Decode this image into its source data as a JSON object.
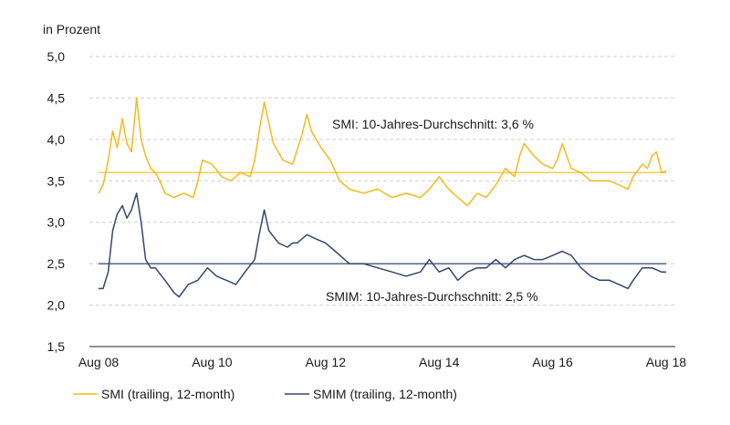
{
  "chart_data": {
    "type": "line",
    "ylabel": "in Prozent",
    "ylim": [
      1.5,
      5.0
    ],
    "yticks": [
      1.5,
      2.0,
      2.5,
      3.0,
      3.5,
      4.0,
      4.5,
      5.0
    ],
    "ytick_labels": [
      "1,5",
      "2,0",
      "2,5",
      "3,0",
      "3,5",
      "4,0",
      "4,5",
      "5,0"
    ],
    "xlim": [
      2008.58,
      2018.58
    ],
    "xticks": [
      2008.58,
      2010.58,
      2012.58,
      2014.58,
      2016.58,
      2018.58
    ],
    "xtick_labels": [
      "Aug 08",
      "Aug 10",
      "Aug 12",
      "Aug 14",
      "Aug 16",
      "Aug 18"
    ],
    "grid": "horizontal-dashed",
    "colors": {
      "smi": "#f2bb1c",
      "smim": "#33466e",
      "grid": "#cfcfcf",
      "axis": "#222222"
    },
    "annotations": [
      {
        "text": "SMI: 10-Jahres-Durchschnitt: 3,6 %",
        "value": 3.6
      },
      {
        "text": "SMIM: 10-Jahres-Durchschnitt: 2,5 %",
        "value": 2.5
      }
    ],
    "legend_position": "bottom-left",
    "series": [
      {
        "name": "SMI (trailing, 12-month)",
        "average": 3.6,
        "points": [
          [
            2008.58,
            3.35
          ],
          [
            2008.66,
            3.45
          ],
          [
            2008.75,
            3.75
          ],
          [
            2008.83,
            4.1
          ],
          [
            2008.91,
            3.9
          ],
          [
            2009.0,
            4.25
          ],
          [
            2009.08,
            3.95
          ],
          [
            2009.16,
            3.85
          ],
          [
            2009.25,
            4.5
          ],
          [
            2009.33,
            4.0
          ],
          [
            2009.41,
            3.8
          ],
          [
            2009.5,
            3.65
          ],
          [
            2009.58,
            3.6
          ],
          [
            2009.66,
            3.5
          ],
          [
            2009.75,
            3.35
          ],
          [
            2009.91,
            3.3
          ],
          [
            2010.08,
            3.35
          ],
          [
            2010.25,
            3.3
          ],
          [
            2010.33,
            3.5
          ],
          [
            2010.41,
            3.75
          ],
          [
            2010.58,
            3.7
          ],
          [
            2010.75,
            3.55
          ],
          [
            2010.91,
            3.5
          ],
          [
            2011.08,
            3.6
          ],
          [
            2011.25,
            3.55
          ],
          [
            2011.33,
            3.75
          ],
          [
            2011.41,
            4.1
          ],
          [
            2011.5,
            4.45
          ],
          [
            2011.58,
            4.2
          ],
          [
            2011.66,
            3.95
          ],
          [
            2011.83,
            3.75
          ],
          [
            2012.0,
            3.7
          ],
          [
            2012.16,
            4.05
          ],
          [
            2012.25,
            4.3
          ],
          [
            2012.33,
            4.1
          ],
          [
            2012.5,
            3.9
          ],
          [
            2012.66,
            3.75
          ],
          [
            2012.83,
            3.5
          ],
          [
            2013.0,
            3.4
          ],
          [
            2013.25,
            3.35
          ],
          [
            2013.5,
            3.4
          ],
          [
            2013.75,
            3.3
          ],
          [
            2014.0,
            3.35
          ],
          [
            2014.25,
            3.3
          ],
          [
            2014.41,
            3.4
          ],
          [
            2014.58,
            3.55
          ],
          [
            2014.75,
            3.4
          ],
          [
            2014.91,
            3.3
          ],
          [
            2015.08,
            3.2
          ],
          [
            2015.25,
            3.35
          ],
          [
            2015.41,
            3.3
          ],
          [
            2015.58,
            3.45
          ],
          [
            2015.75,
            3.65
          ],
          [
            2015.91,
            3.55
          ],
          [
            2016.0,
            3.8
          ],
          [
            2016.08,
            3.95
          ],
          [
            2016.25,
            3.8
          ],
          [
            2016.41,
            3.7
          ],
          [
            2016.58,
            3.65
          ],
          [
            2016.66,
            3.75
          ],
          [
            2016.75,
            3.95
          ],
          [
            2016.83,
            3.8
          ],
          [
            2016.91,
            3.65
          ],
          [
            2017.08,
            3.6
          ],
          [
            2017.25,
            3.5
          ],
          [
            2017.41,
            3.5
          ],
          [
            2017.58,
            3.5
          ],
          [
            2017.75,
            3.45
          ],
          [
            2017.91,
            3.4
          ],
          [
            2018.0,
            3.55
          ],
          [
            2018.16,
            3.7
          ],
          [
            2018.25,
            3.65
          ],
          [
            2018.33,
            3.8
          ],
          [
            2018.41,
            3.85
          ],
          [
            2018.5,
            3.6
          ],
          [
            2018.58,
            3.62
          ]
        ]
      },
      {
        "name": "SMIM (trailing, 12-month)",
        "average": 2.5,
        "points": [
          [
            2008.58,
            2.2
          ],
          [
            2008.66,
            2.2
          ],
          [
            2008.75,
            2.4
          ],
          [
            2008.83,
            2.9
          ],
          [
            2008.91,
            3.1
          ],
          [
            2009.0,
            3.2
          ],
          [
            2009.08,
            3.05
          ],
          [
            2009.16,
            3.15
          ],
          [
            2009.25,
            3.35
          ],
          [
            2009.33,
            3.0
          ],
          [
            2009.41,
            2.55
          ],
          [
            2009.5,
            2.45
          ],
          [
            2009.58,
            2.45
          ],
          [
            2009.75,
            2.3
          ],
          [
            2009.91,
            2.15
          ],
          [
            2010.0,
            2.1
          ],
          [
            2010.16,
            2.25
          ],
          [
            2010.33,
            2.3
          ],
          [
            2010.5,
            2.45
          ],
          [
            2010.66,
            2.35
          ],
          [
            2010.83,
            2.3
          ],
          [
            2011.0,
            2.25
          ],
          [
            2011.16,
            2.4
          ],
          [
            2011.33,
            2.55
          ],
          [
            2011.41,
            2.85
          ],
          [
            2011.5,
            3.15
          ],
          [
            2011.58,
            2.9
          ],
          [
            2011.75,
            2.75
          ],
          [
            2011.91,
            2.7
          ],
          [
            2012.0,
            2.75
          ],
          [
            2012.08,
            2.75
          ],
          [
            2012.25,
            2.85
          ],
          [
            2012.41,
            2.8
          ],
          [
            2012.58,
            2.75
          ],
          [
            2012.75,
            2.65
          ],
          [
            2013.0,
            2.5
          ],
          [
            2013.25,
            2.5
          ],
          [
            2013.5,
            2.45
          ],
          [
            2013.75,
            2.4
          ],
          [
            2014.0,
            2.35
          ],
          [
            2014.25,
            2.4
          ],
          [
            2014.41,
            2.55
          ],
          [
            2014.58,
            2.4
          ],
          [
            2014.75,
            2.45
          ],
          [
            2014.91,
            2.3
          ],
          [
            2015.08,
            2.4
          ],
          [
            2015.25,
            2.45
          ],
          [
            2015.41,
            2.45
          ],
          [
            2015.58,
            2.55
          ],
          [
            2015.75,
            2.45
          ],
          [
            2015.91,
            2.55
          ],
          [
            2016.08,
            2.6
          ],
          [
            2016.25,
            2.55
          ],
          [
            2016.41,
            2.55
          ],
          [
            2016.58,
            2.6
          ],
          [
            2016.75,
            2.65
          ],
          [
            2016.91,
            2.6
          ],
          [
            2017.08,
            2.45
          ],
          [
            2017.25,
            2.35
          ],
          [
            2017.41,
            2.3
          ],
          [
            2017.58,
            2.3
          ],
          [
            2017.75,
            2.25
          ],
          [
            2017.91,
            2.2
          ],
          [
            2018.0,
            2.3
          ],
          [
            2018.16,
            2.45
          ],
          [
            2018.33,
            2.45
          ],
          [
            2018.5,
            2.4
          ],
          [
            2018.58,
            2.4
          ]
        ]
      }
    ]
  }
}
